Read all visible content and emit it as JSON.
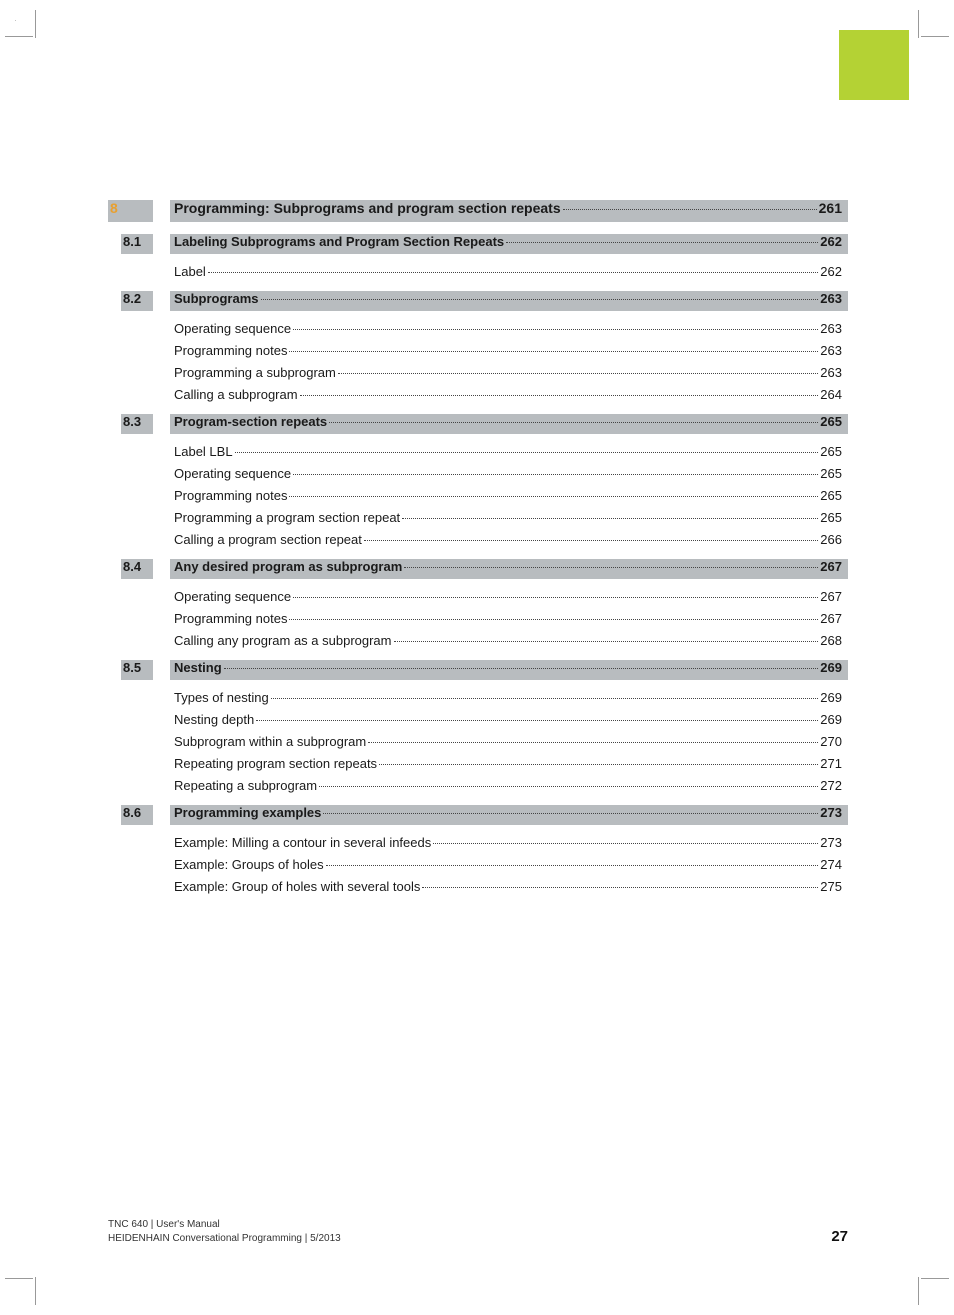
{
  "accent_color": "#b4d234",
  "row_bg": "#b8bcbf",
  "chapter_num_color": "#e8a030",
  "chapter": {
    "number": "8",
    "title": "Programming: Subprograms and program section repeats",
    "page": "261"
  },
  "sections": [
    {
      "number": "8.1",
      "title": "Labeling Subprograms and Program Section Repeats",
      "page": "262",
      "items": [
        {
          "label": "Label",
          "page": "262"
        }
      ]
    },
    {
      "number": "8.2",
      "title": "Subprograms",
      "page": "263",
      "items": [
        {
          "label": "Operating sequence",
          "page": "263"
        },
        {
          "label": "Programming notes",
          "page": "263"
        },
        {
          "label": "Programming a subprogram",
          "page": "263"
        },
        {
          "label": "Calling a subprogram",
          "page": "264"
        }
      ]
    },
    {
      "number": "8.3",
      "title": "Program-section repeats",
      "page": "265",
      "items": [
        {
          "label": "Label LBL",
          "page": "265"
        },
        {
          "label": "Operating sequence",
          "page": "265"
        },
        {
          "label": "Programming notes",
          "page": "265"
        },
        {
          "label": "Programming a program section repeat",
          "page": "265"
        },
        {
          "label": "Calling a program section repeat",
          "page": "266"
        }
      ]
    },
    {
      "number": "8.4",
      "title": "Any desired program as subprogram",
      "page": "267",
      "items": [
        {
          "label": "Operating sequence",
          "page": "267"
        },
        {
          "label": "Programming notes",
          "page": "267"
        },
        {
          "label": "Calling any program as a subprogram",
          "page": "268"
        }
      ]
    },
    {
      "number": "8.5",
      "title": "Nesting",
      "page": "269",
      "items": [
        {
          "label": "Types of nesting",
          "page": "269"
        },
        {
          "label": "Nesting depth",
          "page": "269"
        },
        {
          "label": "Subprogram within a subprogram",
          "page": "270"
        },
        {
          "label": "Repeating program section repeats",
          "page": "271"
        },
        {
          "label": "Repeating a subprogram",
          "page": "272"
        }
      ]
    },
    {
      "number": "8.6",
      "title": "Programming examples",
      "page": "273",
      "items": [
        {
          "label": "Example: Milling a contour in several infeeds",
          "page": "273"
        },
        {
          "label": "Example: Groups of holes",
          "page": "274"
        },
        {
          "label": "Example: Group of holes with several tools",
          "page": "275"
        }
      ]
    }
  ],
  "footer": {
    "line1": "TNC 640 | User's Manual",
    "line2": "HEIDENHAIN Conversational Programming | 5/2013",
    "page_number": "27"
  }
}
